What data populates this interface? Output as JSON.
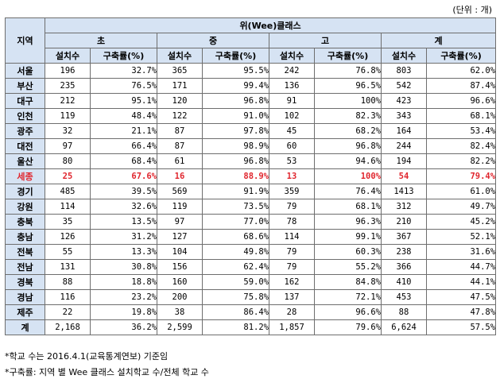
{
  "unit_label": "(단위 : 개)",
  "header": {
    "region": "지역",
    "main_title": "위(Wee)클래스",
    "groups": [
      "초",
      "중",
      "고",
      "계"
    ],
    "sub_count": "설치수",
    "sub_rate": "구축률(%)"
  },
  "rows": [
    {
      "region": "서울",
      "values": [
        "196",
        "32.7%",
        "365",
        "95.5%",
        "242",
        "76.8%",
        "803",
        "62.0%"
      ]
    },
    {
      "region": "부산",
      "values": [
        "235",
        "76.5%",
        "171",
        "99.4%",
        "136",
        "96.5%",
        "542",
        "87.4%"
      ]
    },
    {
      "region": "대구",
      "values": [
        "212",
        "95.1%",
        "120",
        "96.8%",
        "91",
        "100%",
        "423",
        "96.6%"
      ]
    },
    {
      "region": "인천",
      "values": [
        "119",
        "48.4%",
        "122",
        "91.0%",
        "102",
        "82.3%",
        "343",
        "68.1%"
      ]
    },
    {
      "region": "광주",
      "values": [
        "32",
        "21.1%",
        "87",
        "97.8%",
        "45",
        "68.2%",
        "164",
        "53.4%"
      ]
    },
    {
      "region": "대전",
      "values": [
        "97",
        "66.4%",
        "87",
        "98.9%",
        "60",
        "96.8%",
        "244",
        "82.4%"
      ]
    },
    {
      "region": "울산",
      "values": [
        "80",
        "68.4%",
        "61",
        "96.8%",
        "53",
        "94.6%",
        "194",
        "82.2%"
      ]
    },
    {
      "region": "세종",
      "values": [
        "25",
        "67.6%",
        "16",
        "88.9%",
        "13",
        "100%",
        "54",
        "79.4%"
      ],
      "highlight": true
    },
    {
      "region": "경기",
      "values": [
        "485",
        "39.5%",
        "569",
        "91.9%",
        "359",
        "76.4%",
        "1413",
        "61.0%"
      ]
    },
    {
      "region": "강원",
      "values": [
        "114",
        "32.6%",
        "119",
        "73.5%",
        "79",
        "68.1%",
        "312",
        "49.7%"
      ]
    },
    {
      "region": "충북",
      "values": [
        "35",
        "13.5%",
        "97",
        "77.0%",
        "78",
        "96.3%",
        "210",
        "45.2%"
      ]
    },
    {
      "region": "충남",
      "values": [
        "126",
        "31.2%",
        "127",
        "68.6%",
        "114",
        "99.1%",
        "367",
        "52.1%"
      ]
    },
    {
      "region": "전북",
      "values": [
        "55",
        "13.3%",
        "104",
        "49.8%",
        "79",
        "60.3%",
        "238",
        "31.6%"
      ]
    },
    {
      "region": "전남",
      "values": [
        "131",
        "30.8%",
        "156",
        "62.4%",
        "79",
        "55.2%",
        "366",
        "44.7%"
      ]
    },
    {
      "region": "경북",
      "values": [
        "88",
        "18.8%",
        "160",
        "59.0%",
        "162",
        "84.8%",
        "410",
        "44.1%"
      ]
    },
    {
      "region": "경남",
      "values": [
        "116",
        "23.2%",
        "200",
        "75.8%",
        "137",
        "72.1%",
        "453",
        "47.5%"
      ]
    },
    {
      "region": "제주",
      "values": [
        "22",
        "19.8%",
        "38",
        "86.4%",
        "28",
        "96.6%",
        "88",
        "47.8%"
      ]
    },
    {
      "region": "계",
      "values": [
        "2,168",
        "36.2%",
        "2,599",
        "81.2%",
        "1,857",
        "79.6%",
        "6,624",
        "57.5%"
      ],
      "total": true
    }
  ],
  "notes": [
    "*학교 수는 2016.4.1(교육통계연보) 기준임",
    "*구축률: 지역 별 Wee 클래스 설치학교 수/전체 학교 수"
  ],
  "colors": {
    "header_bg": "#d6e3f3",
    "highlight_text": "#e0262e",
    "border": "#6e6e6e"
  }
}
